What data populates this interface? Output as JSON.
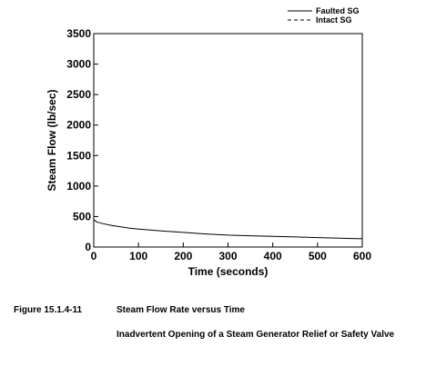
{
  "chart_data": {
    "type": "line",
    "xlabel": "Time (seconds)",
    "ylabel": "Steam Flow (lb/sec)",
    "xlim": [
      0,
      600
    ],
    "ylim": [
      0,
      3500
    ],
    "xticks": [
      0,
      100,
      200,
      300,
      400,
      500,
      600
    ],
    "yticks": [
      0,
      500,
      1000,
      1500,
      2000,
      2500,
      3000,
      3500
    ],
    "grid": false,
    "legend_position": "top-right",
    "series": [
      {
        "name": "Faulted SG",
        "style": "solid",
        "x": [
          0,
          5,
          10,
          20,
          40,
          60,
          80,
          100,
          150,
          200,
          250,
          300,
          350,
          400,
          450,
          500,
          550,
          600
        ],
        "y": [
          450,
          420,
          405,
          385,
          355,
          330,
          310,
          295,
          265,
          240,
          215,
          195,
          185,
          175,
          165,
          155,
          145,
          135
        ]
      },
      {
        "name": "Intact SG",
        "style": "dashed",
        "x": [
          0,
          600
        ],
        "y": [
          0,
          0
        ]
      }
    ]
  },
  "caption": {
    "figure_number": "Figure 15.1.4-11",
    "title": "Steam Flow Rate versus Time",
    "subtitle": "Inadvertent Opening of a Steam Generator Relief or Safety Valve"
  }
}
